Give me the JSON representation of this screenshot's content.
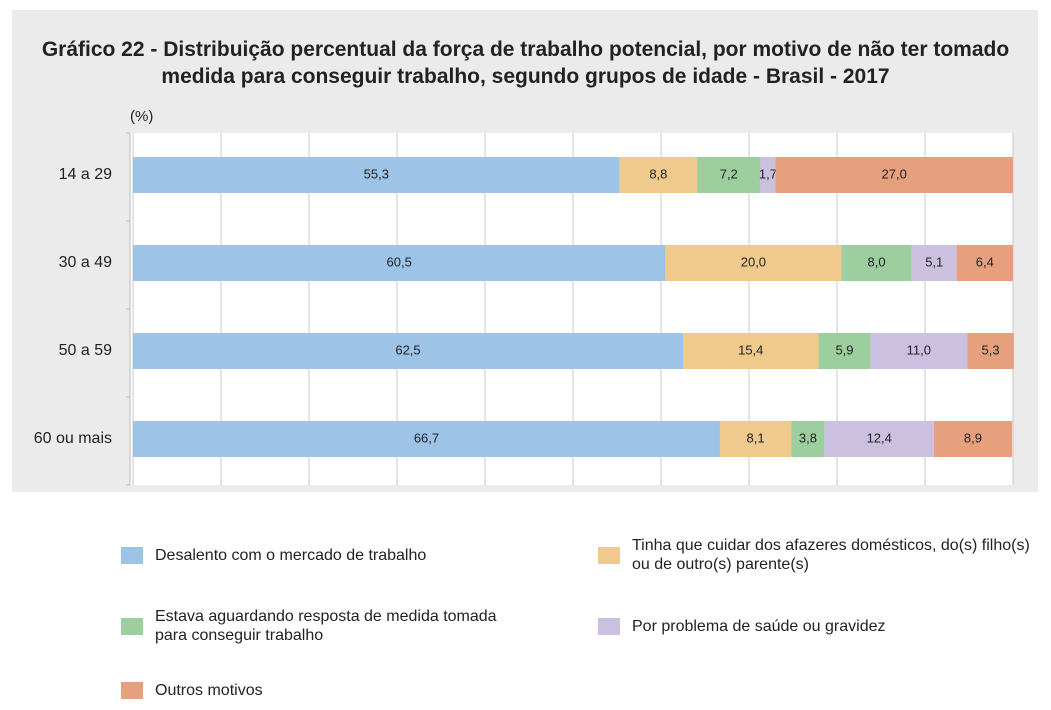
{
  "chart_data": {
    "type": "stacked_barh",
    "title": "Gráfico 22 - Distribuição percentual da força de trabalho potencial, por motivo de não ter tomado medida para conseguir trabalho, segundo grupos de idade - Brasil - 2017",
    "axis_label": "(%)",
    "categories": [
      "14 a 29",
      "30 a 49",
      "50 a 59",
      "60 ou mais"
    ],
    "series": [
      {
        "name": "Desalento com o mercado de trabalho",
        "color": "#9dc3e6",
        "values": [
          55.3,
          60.5,
          62.5,
          66.7
        ],
        "value_labels": [
          "55,3",
          "60,5",
          "62,5",
          "66,7"
        ]
      },
      {
        "name": "Tinha que cuidar dos afazeres domésticos, do(s) filho(s) ou de outro(s) parente(s)",
        "color": "#f0c98c",
        "values": [
          8.8,
          20.0,
          15.4,
          8.1
        ],
        "value_labels": [
          "8,8",
          "20,0",
          "15,4",
          "8,1"
        ]
      },
      {
        "name": "Estava aguardando resposta de medida tomada para conseguir trabalho",
        "color": "#9dcf9e",
        "values": [
          7.2,
          8.0,
          5.9,
          3.8
        ],
        "value_labels": [
          "7,2",
          "8,0",
          "5,9",
          "3,8"
        ]
      },
      {
        "name": "Por problema de saúde ou gravidez",
        "color": "#cbc0e0",
        "values": [
          1.7,
          5.1,
          11.0,
          12.4
        ],
        "value_labels": [
          "1,7",
          "5,1",
          "11,0",
          "12,4"
        ]
      },
      {
        "name": "Outros motivos",
        "color": "#e6a07e",
        "values": [
          27.0,
          6.4,
          5.3,
          8.9
        ],
        "value_labels": [
          "27,0",
          "6,4",
          "5,3",
          "8,9"
        ]
      }
    ],
    "xlim": [
      0,
      100
    ],
    "xticks": [
      0,
      10,
      20,
      30,
      40,
      50,
      60,
      70,
      80,
      90,
      100
    ],
    "grid": true
  }
}
